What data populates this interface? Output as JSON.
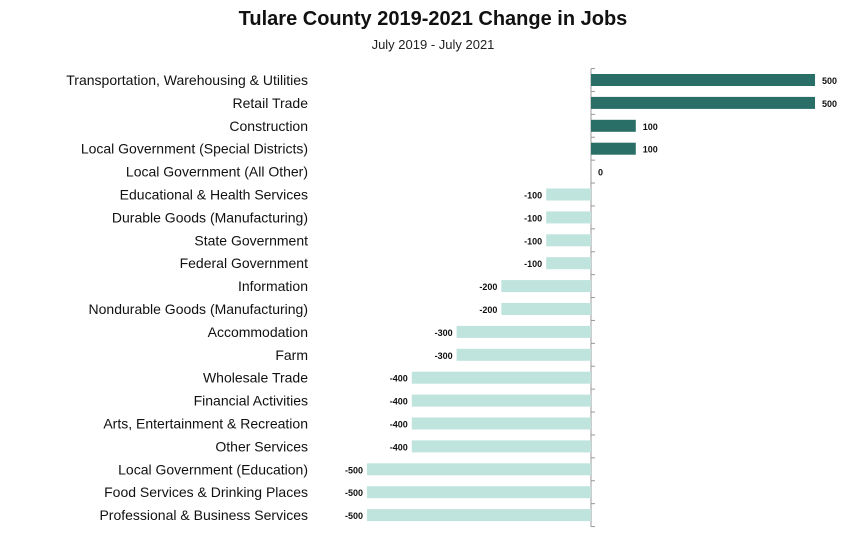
{
  "chart_data": {
    "type": "bar",
    "orientation": "horizontal",
    "title": "Tulare County 2019-2021 Change in Jobs",
    "subtitle": "July 2019 - July 2021",
    "xlabel": "",
    "ylabel": "",
    "grid": false,
    "xlim": [
      -500,
      500
    ],
    "categories": [
      "Transportation, Warehousing & Utilities",
      "Retail Trade",
      "Construction",
      "Local Government (Special Districts)",
      "Local Government (All Other)",
      "Educational & Health Services",
      "Durable Goods (Manufacturing)",
      "State Government",
      "Federal Government",
      "Information",
      "Nondurable Goods (Manufacturing)",
      "Accommodation",
      "Farm",
      "Wholesale Trade",
      "Financial Activities",
      "Arts, Entertainment & Recreation",
      "Other Services",
      "Local Government (Education)",
      "Food Services & Drinking Places",
      "Professional & Business Services"
    ],
    "values": [
      500,
      500,
      100,
      100,
      0,
      -100,
      -100,
      -100,
      -100,
      -200,
      -200,
      -300,
      -300,
      -400,
      -400,
      -400,
      -400,
      -500,
      -500,
      -500
    ],
    "colors": {
      "positive": "#2a6f67",
      "negative": "#bfe3dd",
      "axis": "#999999",
      "text": "#111111"
    }
  }
}
